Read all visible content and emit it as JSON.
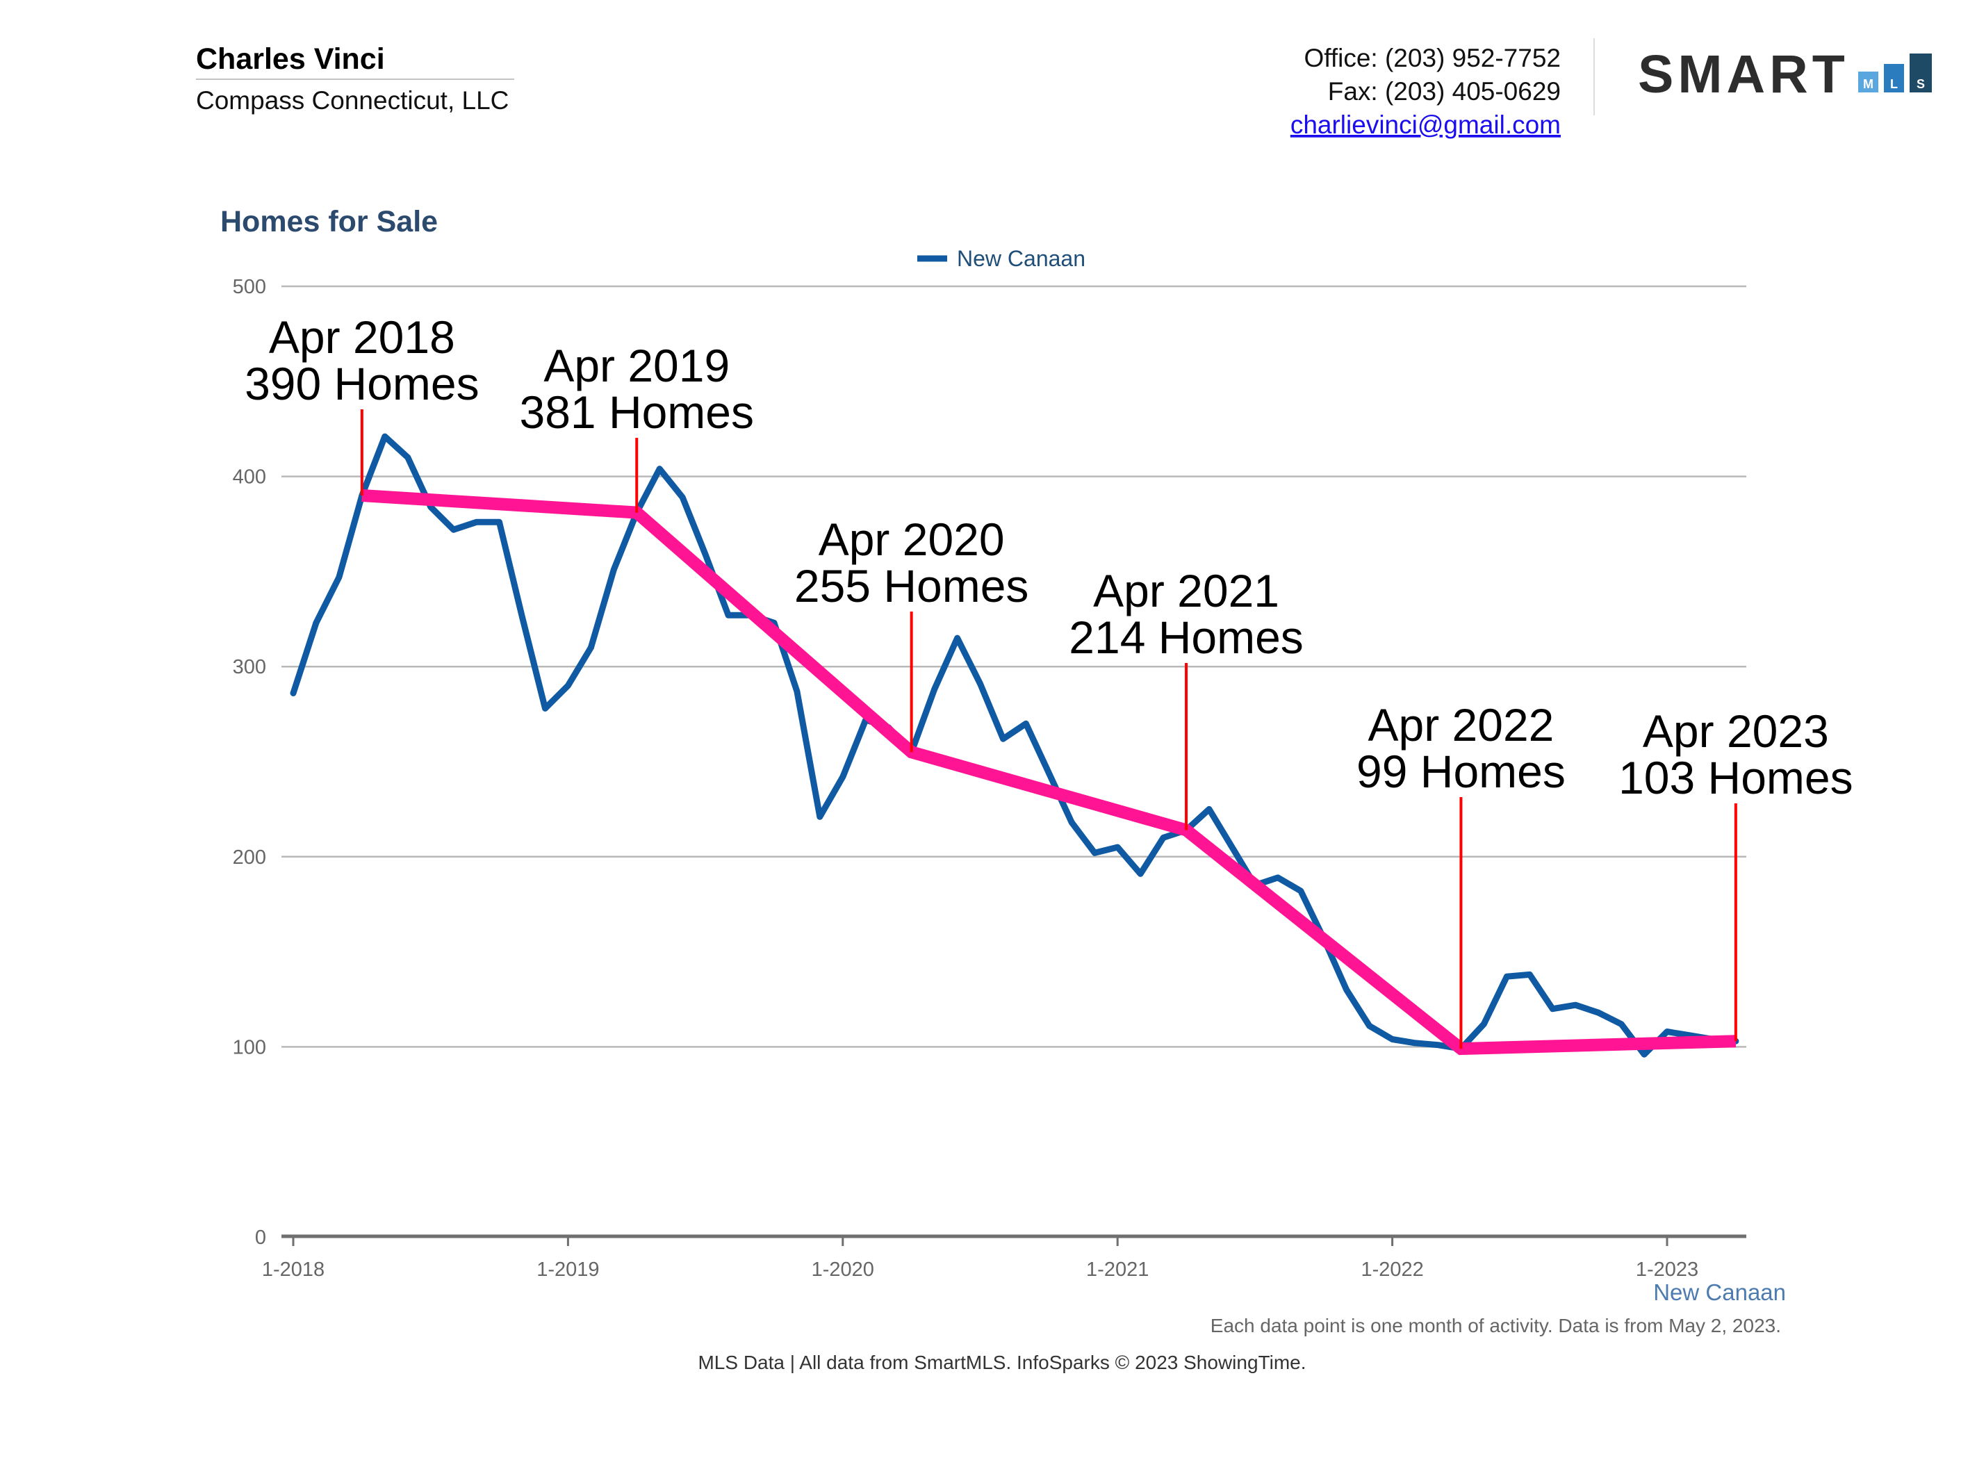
{
  "header": {
    "agent_name": "Charles Vinci",
    "company": "Compass Connecticut, LLC",
    "office": "Office: (203) 952-7752",
    "fax": "Fax: (203) 405-0629",
    "email": "charlievinci@gmail.com"
  },
  "logo": {
    "wordmark": "SMART",
    "letters": [
      "M",
      "L",
      "S"
    ],
    "colors": [
      "#5aa6df",
      "#2b7cbf",
      "#1f4a66"
    ],
    "wordmark_color": "#2d2d2d"
  },
  "chart_data": {
    "type": "line",
    "title": "Homes for Sale",
    "legend": {
      "position": "top",
      "entries": [
        "New Canaan"
      ]
    },
    "x": {
      "start": "2018-01",
      "unit": "month",
      "ticks": [
        {
          "index": 0,
          "label": "1-2018"
        },
        {
          "index": 12,
          "label": "1-2019"
        },
        {
          "index": 24,
          "label": "1-2020"
        },
        {
          "index": 36,
          "label": "1-2021"
        },
        {
          "index": 48,
          "label": "1-2022"
        },
        {
          "index": 60,
          "label": "1-2023"
        }
      ]
    },
    "xlabel": "New Canaan",
    "ylabel": "",
    "ylim": [
      0,
      500
    ],
    "yticks": [
      0,
      100,
      200,
      300,
      400,
      500
    ],
    "grid": true,
    "series": [
      {
        "name": "New Canaan",
        "color": "#0f5aa2",
        "values": [
          286,
          323,
          347,
          390,
          421,
          410,
          384,
          372,
          376,
          376,
          326,
          278,
          290,
          310,
          351,
          381,
          404,
          389,
          359,
          327,
          327,
          323,
          287,
          221,
          242,
          272,
          268,
          255,
          288,
          315,
          291,
          262,
          270,
          244,
          218,
          202,
          205,
          191,
          210,
          214,
          225,
          205,
          185,
          189,
          182,
          157,
          130,
          111,
          104,
          102,
          101,
          99,
          112,
          137,
          138,
          120,
          122,
          118,
          112,
          96,
          108,
          106,
          104,
          103
        ]
      }
    ],
    "trend_color": "#ff1493",
    "annotation_line_color": "#ff0000",
    "annotations": [
      {
        "index": 3,
        "value": 390,
        "line1": "Apr 2018",
        "line2": "390 Homes"
      },
      {
        "index": 15,
        "value": 381,
        "line1": "Apr 2019",
        "line2": "381 Homes"
      },
      {
        "index": 27,
        "value": 255,
        "line1": "Apr 2020",
        "line2": "255 Homes"
      },
      {
        "index": 39,
        "value": 214,
        "line1": "Apr 2021",
        "line2": "214 Homes"
      },
      {
        "index": 51,
        "value": 99,
        "line1": "Apr 2022",
        "line2": "99 Homes"
      },
      {
        "index": 63,
        "value": 103,
        "line1": "Apr 2023",
        "line2": "103 Homes"
      }
    ]
  },
  "footer": {
    "note": "Each data point is one month of activity. Data is from May 2, 2023.",
    "credit": "MLS Data | All data from SmartMLS. InfoSparks © 2023 ShowingTime."
  }
}
